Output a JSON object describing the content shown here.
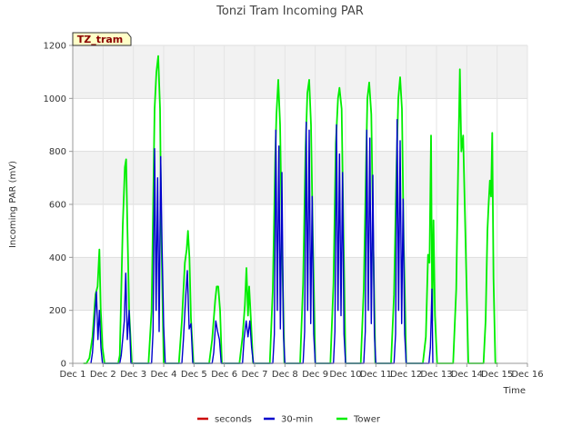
{
  "chart_data": {
    "type": "line",
    "title": "Tonzi Tram Incoming PAR",
    "xlabel": "Time",
    "ylabel": "Incoming PAR (mV)",
    "ylim": [
      0,
      1200
    ],
    "xlim": [
      0,
      15
    ],
    "grid": true,
    "legend_position": "bottom",
    "badge": "TZ_tram",
    "x_ticks": [
      {
        "v": 0,
        "label": "Dec 1"
      },
      {
        "v": 1,
        "label": "Dec 2"
      },
      {
        "v": 2,
        "label": "Dec 3"
      },
      {
        "v": 3,
        "label": "Dec 4"
      },
      {
        "v": 4,
        "label": "Dec 5"
      },
      {
        "v": 5,
        "label": "Dec 6"
      },
      {
        "v": 6,
        "label": "Dec 7"
      },
      {
        "v": 7,
        "label": "Dec 8"
      },
      {
        "v": 8,
        "label": "Dec 9"
      },
      {
        "v": 9,
        "label": "Dec 10"
      },
      {
        "v": 10,
        "label": "Dec 11"
      },
      {
        "v": 11,
        "label": "Dec 12"
      },
      {
        "v": 12,
        "label": "Dec 13"
      },
      {
        "v": 13,
        "label": "Dec 14"
      },
      {
        "v": 14,
        "label": "Dec 15"
      },
      {
        "v": 15,
        "label": "Dec 16"
      }
    ],
    "y_ticks": [
      0,
      200,
      400,
      600,
      800,
      1000,
      1200
    ],
    "series": [
      {
        "name": "seconds",
        "color": "#cc0000",
        "points": []
      },
      {
        "name": "30-min",
        "color": "#0000cc",
        "points": [
          [
            0.6,
            0
          ],
          [
            0.65,
            40
          ],
          [
            0.72,
            160
          ],
          [
            0.78,
            270
          ],
          [
            0.83,
            90
          ],
          [
            0.88,
            200
          ],
          [
            0.93,
            60
          ],
          [
            0.98,
            0
          ],
          [
            1.55,
            0
          ],
          [
            1.6,
            30
          ],
          [
            1.7,
            160
          ],
          [
            1.75,
            340
          ],
          [
            1.8,
            90
          ],
          [
            1.86,
            200
          ],
          [
            1.92,
            0
          ],
          [
            2.6,
            0
          ],
          [
            2.65,
            120
          ],
          [
            2.7,
            810
          ],
          [
            2.75,
            200
          ],
          [
            2.8,
            700
          ],
          [
            2.85,
            120
          ],
          [
            2.9,
            780
          ],
          [
            2.95,
            420
          ],
          [
            3.0,
            140
          ],
          [
            3.05,
            0
          ],
          [
            3.6,
            0
          ],
          [
            3.65,
            90
          ],
          [
            3.72,
            240
          ],
          [
            3.78,
            350
          ],
          [
            3.84,
            130
          ],
          [
            3.9,
            150
          ],
          [
            3.96,
            0
          ],
          [
            4.6,
            0
          ],
          [
            4.65,
            40
          ],
          [
            4.72,
            160
          ],
          [
            4.78,
            120
          ],
          [
            4.84,
            90
          ],
          [
            4.9,
            0
          ],
          [
            5.6,
            0
          ],
          [
            5.65,
            90
          ],
          [
            5.72,
            160
          ],
          [
            5.78,
            100
          ],
          [
            5.84,
            160
          ],
          [
            5.9,
            60
          ],
          [
            5.96,
            0
          ],
          [
            6.6,
            0
          ],
          [
            6.65,
            110
          ],
          [
            6.7,
            880
          ],
          [
            6.75,
            200
          ],
          [
            6.8,
            820
          ],
          [
            6.85,
            130
          ],
          [
            6.9,
            720
          ],
          [
            6.95,
            110
          ],
          [
            7.0,
            0
          ],
          [
            7.6,
            0
          ],
          [
            7.65,
            120
          ],
          [
            7.7,
            910
          ],
          [
            7.75,
            200
          ],
          [
            7.8,
            880
          ],
          [
            7.85,
            150
          ],
          [
            7.9,
            630
          ],
          [
            7.95,
            110
          ],
          [
            8.0,
            0
          ],
          [
            8.6,
            0
          ],
          [
            8.65,
            120
          ],
          [
            8.7,
            900
          ],
          [
            8.75,
            200
          ],
          [
            8.8,
            790
          ],
          [
            8.85,
            180
          ],
          [
            8.9,
            720
          ],
          [
            8.95,
            110
          ],
          [
            9.0,
            0
          ],
          [
            9.6,
            0
          ],
          [
            9.65,
            120
          ],
          [
            9.7,
            880
          ],
          [
            9.75,
            200
          ],
          [
            9.8,
            850
          ],
          [
            9.85,
            150
          ],
          [
            9.9,
            710
          ],
          [
            9.95,
            110
          ],
          [
            10.0,
            0
          ],
          [
            10.6,
            0
          ],
          [
            10.65,
            110
          ],
          [
            10.7,
            920
          ],
          [
            10.75,
            200
          ],
          [
            10.8,
            840
          ],
          [
            10.85,
            150
          ],
          [
            10.9,
            620
          ],
          [
            10.95,
            110
          ],
          [
            11.0,
            0
          ],
          [
            11.75,
            0
          ],
          [
            11.8,
            60
          ],
          [
            11.85,
            280
          ],
          [
            11.88,
            0
          ]
        ]
      },
      {
        "name": "Tower",
        "color": "#00ee00",
        "points": [
          [
            0.35,
            0
          ],
          [
            0.45,
            0
          ],
          [
            0.55,
            20
          ],
          [
            0.65,
            100
          ],
          [
            0.75,
            260
          ],
          [
            0.82,
            290
          ],
          [
            0.88,
            430
          ],
          [
            0.92,
            210
          ],
          [
            0.98,
            60
          ],
          [
            1.05,
            0
          ],
          [
            1.5,
            0
          ],
          [
            1.55,
            30
          ],
          [
            1.65,
            520
          ],
          [
            1.72,
            740
          ],
          [
            1.76,
            770
          ],
          [
            1.8,
            530
          ],
          [
            1.86,
            200
          ],
          [
            1.95,
            0
          ],
          [
            2.5,
            0
          ],
          [
            2.6,
            200
          ],
          [
            2.7,
            960
          ],
          [
            2.76,
            1100
          ],
          [
            2.82,
            1160
          ],
          [
            2.88,
            960
          ],
          [
            2.92,
            520
          ],
          [
            3.0,
            0
          ],
          [
            3.5,
            0
          ],
          [
            3.6,
            160
          ],
          [
            3.7,
            380
          ],
          [
            3.76,
            430
          ],
          [
            3.8,
            500
          ],
          [
            3.85,
            400
          ],
          [
            3.9,
            170
          ],
          [
            3.98,
            0
          ],
          [
            4.5,
            0
          ],
          [
            4.6,
            90
          ],
          [
            4.7,
            240
          ],
          [
            4.75,
            290
          ],
          [
            4.8,
            290
          ],
          [
            4.86,
            200
          ],
          [
            4.92,
            0
          ],
          [
            5.5,
            0
          ],
          [
            5.6,
            100
          ],
          [
            5.68,
            220
          ],
          [
            5.73,
            360
          ],
          [
            5.78,
            180
          ],
          [
            5.82,
            290
          ],
          [
            5.88,
            160
          ],
          [
            5.95,
            0
          ],
          [
            6.5,
            0
          ],
          [
            6.6,
            280
          ],
          [
            6.68,
            780
          ],
          [
            6.72,
            940
          ],
          [
            6.78,
            1070
          ],
          [
            6.84,
            900
          ],
          [
            6.9,
            480
          ],
          [
            6.98,
            0
          ],
          [
            7.5,
            0
          ],
          [
            7.6,
            300
          ],
          [
            7.68,
            810
          ],
          [
            7.74,
            1020
          ],
          [
            7.8,
            1070
          ],
          [
            7.86,
            900
          ],
          [
            7.92,
            480
          ],
          [
            8.0,
            0
          ],
          [
            8.5,
            0
          ],
          [
            8.6,
            300
          ],
          [
            8.68,
            830
          ],
          [
            8.75,
            1000
          ],
          [
            8.8,
            1040
          ],
          [
            8.87,
            960
          ],
          [
            8.93,
            490
          ],
          [
            9.0,
            0
          ],
          [
            9.5,
            0
          ],
          [
            9.6,
            280
          ],
          [
            9.68,
            780
          ],
          [
            9.72,
            1000
          ],
          [
            9.78,
            1060
          ],
          [
            9.85,
            940
          ],
          [
            9.91,
            490
          ],
          [
            9.98,
            0
          ],
          [
            10.5,
            0
          ],
          [
            10.6,
            260
          ],
          [
            10.68,
            740
          ],
          [
            10.74,
            1000
          ],
          [
            10.8,
            1080
          ],
          [
            10.86,
            960
          ],
          [
            10.92,
            450
          ],
          [
            11.0,
            0
          ],
          [
            11.55,
            0
          ],
          [
            11.65,
            100
          ],
          [
            11.72,
            410
          ],
          [
            11.77,
            380
          ],
          [
            11.82,
            860
          ],
          [
            11.86,
            160
          ],
          [
            11.9,
            540
          ],
          [
            11.95,
            180
          ],
          [
            12.02,
            0
          ],
          [
            12.55,
            0
          ],
          [
            12.65,
            280
          ],
          [
            12.72,
            780
          ],
          [
            12.77,
            1110
          ],
          [
            12.82,
            800
          ],
          [
            12.88,
            860
          ],
          [
            12.95,
            500
          ],
          [
            13.05,
            0
          ],
          [
            13.55,
            0
          ],
          [
            13.62,
            160
          ],
          [
            13.68,
            500
          ],
          [
            13.72,
            600
          ],
          [
            13.76,
            690
          ],
          [
            13.8,
            630
          ],
          [
            13.84,
            870
          ],
          [
            13.88,
            320
          ],
          [
            13.94,
            0
          ],
          [
            14.02,
            0
          ]
        ]
      }
    ]
  }
}
